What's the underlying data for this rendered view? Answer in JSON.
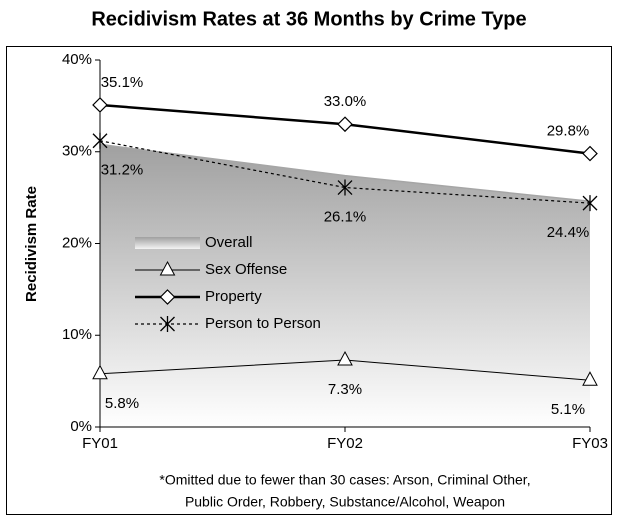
{
  "chart_data": {
    "type": "line",
    "title": "Recidivism Rates at 36 Months by Crime Type",
    "y_label": "Recidivism Rate",
    "categories": [
      "FY01",
      "FY02",
      "FY03"
    ],
    "ylim": [
      0,
      40
    ],
    "yticks": [
      {
        "value": 0,
        "label": "0%"
      },
      {
        "value": 10,
        "label": "10%"
      },
      {
        "value": 20,
        "label": "20%"
      },
      {
        "value": 30,
        "label": "30%"
      },
      {
        "value": 40,
        "label": "40%"
      }
    ],
    "grid": false,
    "series": [
      {
        "name": "Overall",
        "style": "area",
        "color": "#a6a6a6",
        "values": [
          30.8,
          27.4,
          24.6
        ]
      },
      {
        "name": "Sex Offense",
        "style": "line",
        "marker": "triangle",
        "width": 1,
        "dash": false,
        "label_position": "below",
        "color": "#000000",
        "values": [
          5.8,
          7.3,
          5.1
        ],
        "value_labels": [
          "5.8%",
          "7.3%",
          "5.1%"
        ]
      },
      {
        "name": "Property",
        "style": "line",
        "marker": "diamond",
        "width": 2.5,
        "dash": false,
        "label_position": "above",
        "color": "#000000",
        "values": [
          35.1,
          33.0,
          29.8
        ],
        "value_labels": [
          "35.1%",
          "33.0%",
          "29.8%"
        ]
      },
      {
        "name": "Person to Person",
        "style": "line",
        "marker": "star",
        "width": 1.2,
        "dash": true,
        "label_position": "below",
        "color": "#000000",
        "values": [
          31.2,
          26.1,
          24.4
        ],
        "value_labels": [
          "31.2%",
          "26.1%",
          "24.4%"
        ]
      }
    ],
    "notes": [
      "*Omitted due to fewer than 30 cases: Arson, Criminal Other,",
      "Public Order, Robbery, Substance/Alcohol, Weapon"
    ]
  }
}
